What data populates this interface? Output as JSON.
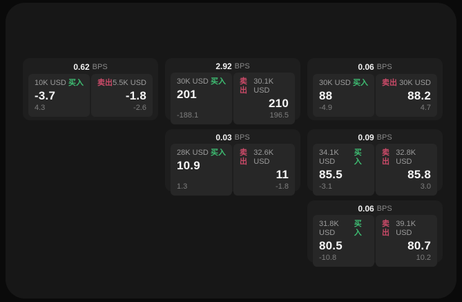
{
  "labels": {
    "bps_unit": "BPS",
    "buy": "买入",
    "sell": "卖出"
  },
  "colors": {
    "buy_green": "#3ebd72",
    "sell_red": "#ca4a68",
    "window_bg": "#171717",
    "card_bg": "#1e1e1e",
    "panel_bg": "#272727"
  },
  "cards": [
    {
      "bps": "0.62",
      "buy": {
        "amount": "10K USD",
        "value": "-3.7",
        "delta": "4.3"
      },
      "sell": {
        "amount": "5.5K USD",
        "value": "-1.8",
        "delta": "-2.6"
      }
    },
    {
      "bps": "2.92",
      "buy": {
        "amount": "30K USD",
        "value": "201",
        "delta": "-188.1"
      },
      "sell": {
        "amount": "30.1K USD",
        "value": "210",
        "delta": "196.5"
      }
    },
    {
      "bps": "0.06",
      "buy": {
        "amount": "30K USD",
        "value": "88",
        "delta": "-4.9"
      },
      "sell": {
        "amount": "30K USD",
        "value": "88.2",
        "delta": "4.7"
      }
    },
    {
      "bps": "0.03",
      "buy": {
        "amount": "28K USD",
        "value": "10.9",
        "delta": "1.3"
      },
      "sell": {
        "amount": "32.6K USD",
        "value": "11",
        "delta": "-1.8"
      }
    },
    {
      "bps": "0.09",
      "buy": {
        "amount": "34.1K USD",
        "value": "85.5",
        "delta": "-3.1"
      },
      "sell": {
        "amount": "32.8K USD",
        "value": "85.8",
        "delta": "3.0"
      }
    },
    {
      "bps": "0.06",
      "buy": {
        "amount": "31.8K USD",
        "value": "80.5",
        "delta": "-10.8"
      },
      "sell": {
        "amount": "39.1K USD",
        "value": "80.7",
        "delta": "10.2"
      }
    }
  ]
}
